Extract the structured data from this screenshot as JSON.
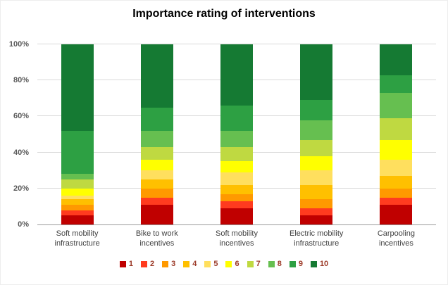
{
  "title": "Importance rating of interventions",
  "colors": {
    "gridline": "#d9d9d9",
    "axis_line": "#9a9a9a",
    "ytick_text": "#595959",
    "xlabel_text": "#404040",
    "legend_text": "#9c3a28"
  },
  "chart_data": {
    "type": "bar",
    "subtype": "stacked-100-percent-column",
    "title": "Importance rating of interventions",
    "xlabel": "",
    "ylabel": "",
    "ylim": [
      0,
      100
    ],
    "yticks": [
      0,
      20,
      40,
      60,
      80,
      100
    ],
    "ytick_suffix": "%",
    "grid": true,
    "legend_position": "bottom",
    "categories": [
      "Soft mobility\ninfrastructure",
      "Bike to work\nincentives",
      "Soft mobility\nincentives",
      "Electric mobility\ninfrastructure",
      "Carpooling\nincentives"
    ],
    "series": [
      {
        "name": "1",
        "color": "#c00000",
        "values": [
          5,
          11,
          9,
          5,
          11
        ]
      },
      {
        "name": "2",
        "color": "#ff3b1f",
        "values": [
          3,
          4,
          4,
          4,
          4
        ]
      },
      {
        "name": "3",
        "color": "#ff9900",
        "values": [
          3,
          5,
          4,
          5,
          5
        ]
      },
      {
        "name": "4",
        "color": "#ffc000",
        "values": [
          3,
          5,
          5,
          8,
          7
        ]
      },
      {
        "name": "5",
        "color": "#ffdf5e",
        "values": [
          2,
          5,
          7,
          8,
          9
        ]
      },
      {
        "name": "6",
        "color": "#ffff00",
        "values": [
          4,
          6,
          6,
          8,
          11
        ]
      },
      {
        "name": "7",
        "color": "#bfd941",
        "values": [
          5,
          7,
          8,
          9,
          12
        ]
      },
      {
        "name": "8",
        "color": "#66bf50",
        "values": [
          3,
          9,
          9,
          11,
          14
        ]
      },
      {
        "name": "9",
        "color": "#2da043",
        "values": [
          24,
          13,
          14,
          11,
          10
        ]
      },
      {
        "name": "10",
        "color": "#157a33",
        "values": [
          48,
          35,
          34,
          31,
          17
        ]
      }
    ]
  }
}
